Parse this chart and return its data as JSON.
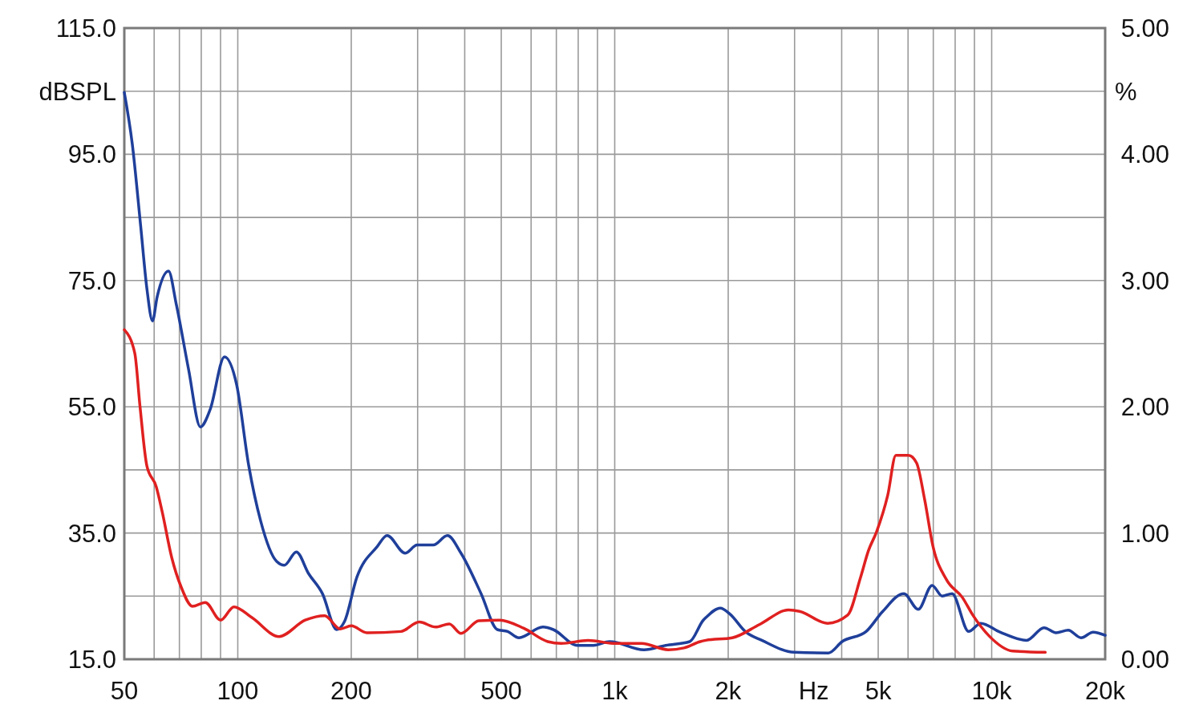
{
  "chart_data": {
    "type": "line",
    "xlabel": "Hz",
    "ylabel": "dBSPL",
    "y2label": "%",
    "log": "x",
    "grid": true,
    "marker": "none",
    "line_style": "solid",
    "xlim": [
      50,
      20000
    ],
    "xticks": [
      50,
      {
        "value": 60,
        "label": null
      },
      {
        "value": 70,
        "label": null
      },
      {
        "value": 80,
        "label": null
      },
      {
        "value": 90,
        "label": null
      },
      100,
      200,
      {
        "value": 300,
        "label": null
      },
      {
        "value": 400,
        "label": null
      },
      500,
      {
        "value": 600,
        "label": null
      },
      {
        "value": 700,
        "label": null
      },
      {
        "value": 800,
        "label": null
      },
      {
        "value": 900,
        "label": null
      },
      {
        "value": 1000,
        "label": "1k"
      },
      {
        "value": 2000,
        "label": "2k"
      },
      {
        "value": 3000,
        "label": null
      },
      {
        "value": 4000,
        "label": null
      },
      {
        "value": 5000,
        "label": "5k"
      },
      {
        "value": 6000,
        "label": null
      },
      {
        "value": 7000,
        "label": null
      },
      {
        "value": 8000,
        "label": null
      },
      {
        "value": 9000,
        "label": null
      },
      {
        "value": 10000,
        "label": "10k"
      },
      {
        "value": 20000,
        "label": "20k"
      }
    ],
    "ylim": [
      15,
      115
    ],
    "yticks": [
      {
        "value": 15,
        "label": "15.0"
      },
      {
        "value": 25,
        "label": null
      },
      {
        "value": 35,
        "label": "35.0"
      },
      {
        "value": 45,
        "label": null
      },
      {
        "value": 55,
        "label": "55.0"
      },
      {
        "value": 65,
        "label": null
      },
      {
        "value": 75,
        "label": "75.0"
      },
      {
        "value": 85,
        "label": null
      },
      {
        "value": 95,
        "label": "95.0"
      },
      {
        "value": 105,
        "label": null
      },
      {
        "value": 115,
        "label": "115.0"
      }
    ],
    "y2lim": [
      0,
      5
    ],
    "y2ticks": [
      {
        "value": 0,
        "label": "0.00"
      },
      {
        "value": 1,
        "label": "1.00"
      },
      {
        "value": 2,
        "label": "2.00"
      },
      {
        "value": 3,
        "label": "3.00"
      },
      {
        "value": 4,
        "label": "4.00"
      },
      {
        "value": 5,
        "label": "5.00"
      }
    ],
    "series": [
      {
        "color": "#1f3f9a",
        "x": [
          50,
          52.5,
          55.2,
          57.4,
          59.4,
          61.1,
          65.5,
          68.7,
          74,
          79.6,
          84.5,
          92.2,
          99.3,
          106.9,
          115,
          126.8,
          133,
          143,
          154,
          167.7,
          183,
          192,
          207,
          234,
          249,
          278,
          299,
          330,
          360,
          391,
          442,
          488,
          520,
          557,
          645,
          687,
          796,
          878,
          968,
          1196,
          1365,
          1581,
          1718,
          1745,
          1906,
          2018,
          2229,
          2456,
          2992,
          3690,
          4010,
          4645,
          5125,
          5850,
          6385,
          6950,
          7395,
          7850,
          8690,
          9350,
          10520,
          12380,
          13770,
          14820,
          15960,
          17260,
          18580,
          20000
        ],
        "values": [
          104.8,
          96.6,
          83.9,
          73.7,
          68.6,
          72.4,
          76.5,
          71.2,
          61.0,
          51.8,
          54.6,
          62.9,
          58.5,
          45.7,
          36.9,
          30.5,
          29.9,
          32.0,
          28.6,
          25.4,
          19.7,
          21.0,
          28.0,
          32.8,
          34.6,
          31.8,
          33.1,
          33.1,
          34.6,
          31.8,
          25.4,
          19.7,
          19.4,
          18.4,
          20.1,
          19.7,
          17.2,
          17.2,
          17.8,
          16.5,
          17.2,
          17.8,
          21.2,
          21.6,
          23.1,
          22.2,
          19.3,
          18.0,
          16.1,
          16.0,
          17.8,
          19.4,
          22.5,
          25.4,
          22.9,
          26.7,
          25.0,
          25.4,
          19.4,
          20.7,
          19.3,
          18.0,
          20.0,
          19.2,
          19.6,
          18.4,
          19.3,
          18.8
        ]
      },
      {
        "color": "#e02020",
        "x": [
          50,
          53.3,
          55,
          57.4,
          60.8,
          63,
          66.8,
          70.8,
          75.8,
          82,
          90,
          97.7,
          109,
          128.7,
          151,
          170,
          187,
          200,
          220,
          271,
          303,
          335,
          364,
          391,
          436,
          495,
          574,
          664,
          722,
          850,
          1002,
          1178,
          1387,
          1527,
          1686,
          1745,
          2050,
          2420,
          2890,
          3090,
          3670,
          4150,
          4490,
          4710,
          4950,
          5300,
          5570,
          6020,
          6320,
          6640,
          6980,
          7590,
          8360,
          8910,
          9840,
          11370,
          13870
        ],
        "values": [
          67.2,
          63.5,
          55.2,
          45.6,
          42.3,
          38.4,
          31.1,
          26.4,
          23.4,
          24.0,
          21.2,
          23.3,
          21.6,
          18.6,
          21.2,
          21.9,
          19.8,
          20.3,
          19.2,
          19.4,
          20.9,
          20.1,
          20.6,
          19.1,
          21.1,
          21.2,
          19.9,
          17.8,
          17.5,
          18.0,
          17.5,
          17.5,
          16.5,
          16.8,
          17.8,
          18.0,
          18.4,
          20.5,
          22.8,
          22.6,
          20.7,
          22.0,
          28.0,
          32.2,
          35.2,
          41.0,
          47.3,
          47.3,
          46.1,
          40.3,
          33.0,
          27.6,
          24.8,
          22.0,
          18.7,
          16.3,
          16.1
        ]
      }
    ]
  }
}
